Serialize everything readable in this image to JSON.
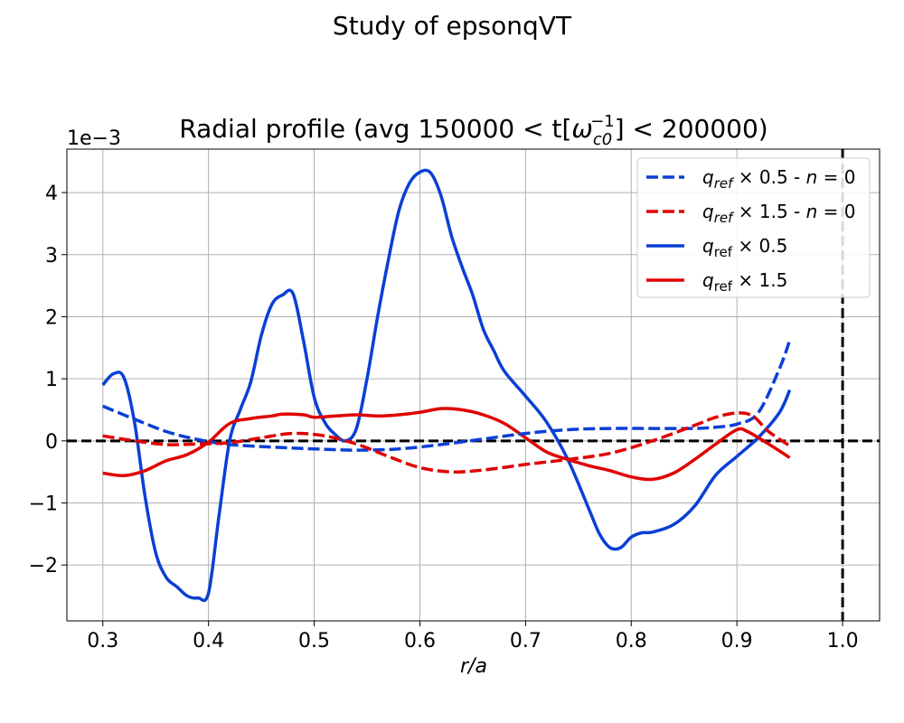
{
  "figure": {
    "suptitle": "Study of epsonqVT"
  },
  "chart_data": {
    "type": "line",
    "title": "Radial profile (avg 150000 < t[ω_c0^-1] < 200000)",
    "title_parts": {
      "prefix": "Radial profile (avg 150000 < t[",
      "symbol": "ω",
      "sub": "c0",
      "sup": "−1",
      "suffix": "] < 200000)"
    },
    "xlabel": "r/a",
    "ylabel": "",
    "y_offset_text": "1e−3",
    "xlim": [
      0.266,
      1.035
    ],
    "ylim": [
      -2.9,
      4.7
    ],
    "xticks": [
      0.3,
      0.4,
      0.5,
      0.6,
      0.7,
      0.8,
      0.9,
      1.0
    ],
    "xtick_labels": [
      "0.3",
      "0.4",
      "0.5",
      "0.6",
      "0.7",
      "0.8",
      "0.9",
      "1.0"
    ],
    "yticks": [
      -2,
      -1,
      0,
      1,
      2,
      3,
      4
    ],
    "ytick_labels": [
      "−2",
      "−1",
      "0",
      "1",
      "2",
      "3",
      "4"
    ],
    "grid": true,
    "legend_position": "top-right",
    "reference_lines": {
      "horizontal_y": 0,
      "vertical_x": 1.0,
      "color": "#000000",
      "style": "dashed"
    },
    "series": [
      {
        "name": "q_ref × 0.5 - n = 0",
        "legend": {
          "q": "q",
          "sub": "ref",
          "rest": " × 0.5 - ",
          "n": "n",
          "eq": " = 0"
        },
        "color": "#0a3fd6",
        "style": "dashed",
        "points": [
          [
            0.3,
            0.56
          ],
          [
            0.33,
            0.35
          ],
          [
            0.36,
            0.15
          ],
          [
            0.39,
            0.02
          ],
          [
            0.42,
            -0.06
          ],
          [
            0.46,
            -0.1
          ],
          [
            0.5,
            -0.13
          ],
          [
            0.54,
            -0.15
          ],
          [
            0.58,
            -0.13
          ],
          [
            0.62,
            -0.06
          ],
          [
            0.66,
            0.03
          ],
          [
            0.7,
            0.12
          ],
          [
            0.74,
            0.18
          ],
          [
            0.78,
            0.2
          ],
          [
            0.82,
            0.2
          ],
          [
            0.86,
            0.2
          ],
          [
            0.88,
            0.22
          ],
          [
            0.9,
            0.27
          ],
          [
            0.92,
            0.45
          ],
          [
            0.94,
            1.15
          ],
          [
            0.95,
            1.62
          ]
        ]
      },
      {
        "name": "q_ref × 1.5 - n = 0",
        "legend": {
          "q": "q",
          "sub": "ref",
          "rest": " × 1.5 - ",
          "n": "n",
          "eq": " = 0"
        },
        "color": "#e00000",
        "style": "dashed",
        "points": [
          [
            0.3,
            0.08
          ],
          [
            0.33,
            0.0
          ],
          [
            0.36,
            -0.06
          ],
          [
            0.39,
            -0.05
          ],
          [
            0.42,
            -0.03
          ],
          [
            0.45,
            0.05
          ],
          [
            0.48,
            0.12
          ],
          [
            0.51,
            0.08
          ],
          [
            0.54,
            -0.05
          ],
          [
            0.57,
            -0.25
          ],
          [
            0.6,
            -0.43
          ],
          [
            0.63,
            -0.5
          ],
          [
            0.66,
            -0.47
          ],
          [
            0.7,
            -0.38
          ],
          [
            0.74,
            -0.3
          ],
          [
            0.78,
            -0.2
          ],
          [
            0.82,
            0.0
          ],
          [
            0.86,
            0.25
          ],
          [
            0.88,
            0.38
          ],
          [
            0.9,
            0.45
          ],
          [
            0.915,
            0.4
          ],
          [
            0.93,
            0.15
          ],
          [
            0.95,
            -0.08
          ]
        ]
      },
      {
        "name": "q_ref × 0.5",
        "legend": {
          "q": "q",
          "sub": "ref",
          "rest": " × 0.5",
          "n": "",
          "eq": ""
        },
        "color": "#0a3fd6",
        "style": "solid",
        "points": [
          [
            0.3,
            0.9
          ],
          [
            0.31,
            1.08
          ],
          [
            0.32,
            1.02
          ],
          [
            0.33,
            0.3
          ],
          [
            0.34,
            -0.9
          ],
          [
            0.35,
            -1.8
          ],
          [
            0.36,
            -2.2
          ],
          [
            0.37,
            -2.35
          ],
          [
            0.38,
            -2.5
          ],
          [
            0.39,
            -2.53
          ],
          [
            0.4,
            -2.45
          ],
          [
            0.41,
            -1.2
          ],
          [
            0.42,
            0.0
          ],
          [
            0.43,
            0.5
          ],
          [
            0.44,
            0.95
          ],
          [
            0.45,
            1.7
          ],
          [
            0.46,
            2.2
          ],
          [
            0.47,
            2.35
          ],
          [
            0.48,
            2.37
          ],
          [
            0.49,
            1.6
          ],
          [
            0.5,
            0.7
          ],
          [
            0.51,
            0.3
          ],
          [
            0.52,
            0.1
          ],
          [
            0.53,
            0.0
          ],
          [
            0.54,
            0.2
          ],
          [
            0.55,
            1.0
          ],
          [
            0.56,
            2.0
          ],
          [
            0.57,
            2.9
          ],
          [
            0.58,
            3.7
          ],
          [
            0.59,
            4.15
          ],
          [
            0.6,
            4.33
          ],
          [
            0.61,
            4.32
          ],
          [
            0.62,
            3.95
          ],
          [
            0.63,
            3.3
          ],
          [
            0.64,
            2.8
          ],
          [
            0.65,
            2.35
          ],
          [
            0.66,
            1.8
          ],
          [
            0.67,
            1.45
          ],
          [
            0.68,
            1.12
          ],
          [
            0.7,
            0.72
          ],
          [
            0.72,
            0.3
          ],
          [
            0.74,
            -0.3
          ],
          [
            0.76,
            -1.1
          ],
          [
            0.77,
            -1.5
          ],
          [
            0.78,
            -1.72
          ],
          [
            0.79,
            -1.72
          ],
          [
            0.8,
            -1.55
          ],
          [
            0.81,
            -1.48
          ],
          [
            0.82,
            -1.47
          ],
          [
            0.84,
            -1.35
          ],
          [
            0.86,
            -1.05
          ],
          [
            0.88,
            -0.55
          ],
          [
            0.9,
            -0.25
          ],
          [
            0.92,
            0.05
          ],
          [
            0.94,
            0.45
          ],
          [
            0.95,
            0.82
          ]
        ]
      },
      {
        "name": "q_ref × 1.5",
        "legend": {
          "q": "q",
          "sub": "ref",
          "rest": " × 1.5",
          "n": "",
          "eq": ""
        },
        "color": "#e00000",
        "style": "solid",
        "points": [
          [
            0.3,
            -0.52
          ],
          [
            0.32,
            -0.56
          ],
          [
            0.34,
            -0.48
          ],
          [
            0.36,
            -0.32
          ],
          [
            0.38,
            -0.22
          ],
          [
            0.4,
            -0.02
          ],
          [
            0.42,
            0.28
          ],
          [
            0.44,
            0.36
          ],
          [
            0.46,
            0.4
          ],
          [
            0.47,
            0.43
          ],
          [
            0.49,
            0.42
          ],
          [
            0.5,
            0.38
          ],
          [
            0.52,
            0.4
          ],
          [
            0.54,
            0.42
          ],
          [
            0.56,
            0.4
          ],
          [
            0.58,
            0.42
          ],
          [
            0.6,
            0.46
          ],
          [
            0.62,
            0.52
          ],
          [
            0.64,
            0.5
          ],
          [
            0.66,
            0.42
          ],
          [
            0.68,
            0.28
          ],
          [
            0.7,
            0.05
          ],
          [
            0.72,
            -0.18
          ],
          [
            0.74,
            -0.3
          ],
          [
            0.76,
            -0.4
          ],
          [
            0.78,
            -0.48
          ],
          [
            0.8,
            -0.58
          ],
          [
            0.82,
            -0.62
          ],
          [
            0.84,
            -0.52
          ],
          [
            0.86,
            -0.3
          ],
          [
            0.88,
            -0.05
          ],
          [
            0.9,
            0.18
          ],
          [
            0.91,
            0.15
          ],
          [
            0.93,
            -0.05
          ],
          [
            0.95,
            -0.27
          ]
        ]
      }
    ]
  }
}
